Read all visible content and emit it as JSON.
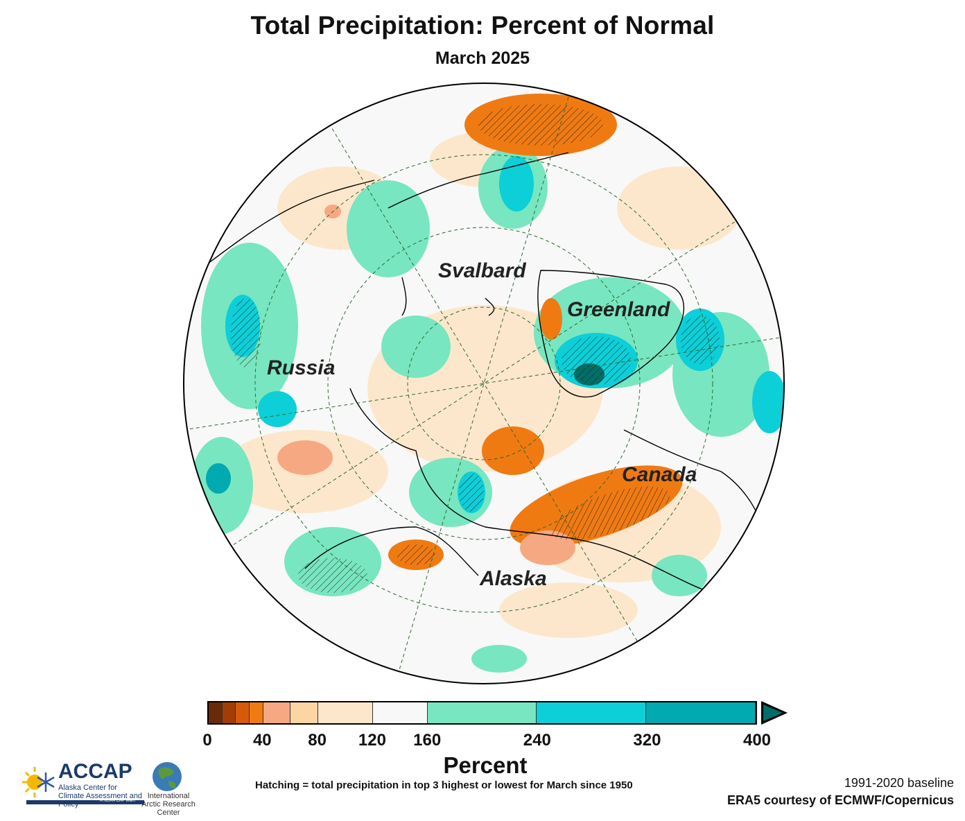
{
  "title": "Total Precipitation: Percent of Normal",
  "subtitle": "March 2025",
  "map": {
    "projection": "north-polar-stereographic",
    "labels": [
      "Svalbard",
      "Greenland",
      "Russia",
      "Canada",
      "Alaska"
    ],
    "hatching": "top 3 highest or lowest for March since 1950"
  },
  "colorbar": {
    "label": "Percent",
    "tick_labels": [
      "0",
      "40",
      "80",
      "120",
      "160",
      "240",
      "320",
      "400"
    ],
    "bounds": [
      0,
      10,
      20,
      30,
      40,
      60,
      80,
      120,
      160,
      240,
      320,
      400
    ],
    "colors": [
      "#6b2a06",
      "#a33d06",
      "#d75a0a",
      "#f07a12",
      "#f6a882",
      "#fcd5a3",
      "#fde7cc",
      "#f8f8f8",
      "#78e6c0",
      "#0ccfd8",
      "#00aab0",
      "#006e69"
    ],
    "extend": "max"
  },
  "footnotes": {
    "hatching": "Hatching = total precipitation in top 3 highest or lowest for March since 1950",
    "baseline": "1991-2020 baseline",
    "source": "ERA5 courtesy of ECMWF/Copernicus"
  },
  "logos": {
    "accap_name": "ACCAP",
    "accap_sub": "Alaska Center for Climate Assessment and Policy",
    "accap_noaa": "A NOAA CAP team",
    "iarc_sub": "International Arctic Research Center"
  }
}
